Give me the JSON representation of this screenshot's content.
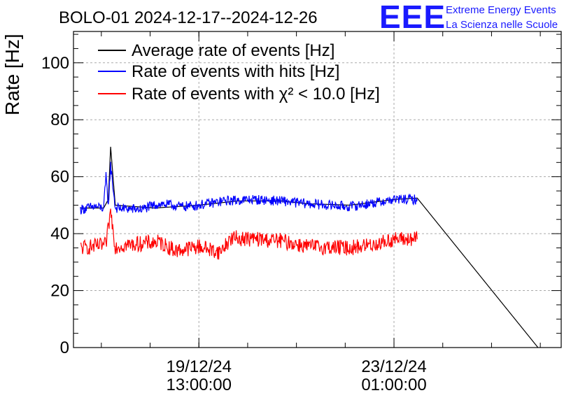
{
  "chart_data": {
    "type": "line",
    "title": "BOLO-01 2024-12-17--2024-12-26",
    "ylabel": "Rate [Hz]",
    "xlabel": "",
    "ylim": [
      0,
      111
    ],
    "yticks": [
      0,
      20,
      40,
      60,
      80,
      100
    ],
    "xlim": [
      "2024-12-17 07:00",
      "2024-12-26 01:00"
    ],
    "xticks": [
      {
        "time": "2024-12-19 13:00",
        "date": "19/12/24",
        "clock": "13:00:00"
      },
      {
        "time": "2024-12-23 01:00",
        "date": "23/12/24",
        "clock": "01:00:00"
      }
    ],
    "grid": true,
    "legend": "top-left",
    "series": [
      {
        "name": "Average rate of events [Hz]",
        "color": "#000000",
        "points": [
          [
            "2024-12-17 10:00",
            49.0
          ],
          [
            "2024-12-17 20:00",
            49.0
          ],
          [
            "2024-12-17 22:00",
            52.0
          ],
          [
            "2024-12-17 23:00",
            70.5
          ],
          [
            "2024-12-18 01:00",
            50.0
          ],
          [
            "2024-12-18 18:00",
            49.0
          ],
          [
            "2024-12-19 13:00",
            50.0
          ],
          [
            "2024-12-20 06:00",
            51.5
          ],
          [
            "2024-12-21 00:00",
            51.5
          ],
          [
            "2024-12-21 12:00",
            50.5
          ],
          [
            "2024-12-22 06:00",
            50.0
          ],
          [
            "2024-12-23 01:00",
            52.0
          ],
          [
            "2024-12-23 11:00",
            52.5
          ],
          [
            "2024-12-25 15:00",
            0.0
          ]
        ]
      },
      {
        "name": "Rate of events with hits [Hz]",
        "color": "#0000ff",
        "points": [
          [
            "2024-12-17 10:00",
            48.5
          ],
          [
            "2024-12-17 16:00",
            49.5
          ],
          [
            "2024-12-17 20:00",
            49.0
          ],
          [
            "2024-12-17 21:00",
            60.0
          ],
          [
            "2024-12-17 22:00",
            50.0
          ],
          [
            "2024-12-17 23:00",
            64.0
          ],
          [
            "2024-12-18 01:00",
            49.0
          ],
          [
            "2024-12-18 12:00",
            48.5
          ],
          [
            "2024-12-18 20:00",
            50.5
          ],
          [
            "2024-12-19 06:00",
            49.5
          ],
          [
            "2024-12-19 13:00",
            50.0
          ],
          [
            "2024-12-20 00:00",
            51.5
          ],
          [
            "2024-12-20 12:00",
            52.0
          ],
          [
            "2024-12-21 00:00",
            51.5
          ],
          [
            "2024-12-21 12:00",
            50.5
          ],
          [
            "2024-12-22 06:00",
            49.5
          ],
          [
            "2024-12-22 18:00",
            51.0
          ],
          [
            "2024-12-23 01:00",
            52.0
          ],
          [
            "2024-12-23 11:00",
            52.0
          ]
        ]
      },
      {
        "name": "Rate of events with χ² < 10.0 [Hz]",
        "color": "#ff0000",
        "points": [
          [
            "2024-12-17 10:00",
            35.0
          ],
          [
            "2024-12-17 16:00",
            35.5
          ],
          [
            "2024-12-17 21:00",
            36.0
          ],
          [
            "2024-12-17 23:00",
            48.0
          ],
          [
            "2024-12-18 01:00",
            35.5
          ],
          [
            "2024-12-18 12:00",
            36.5
          ],
          [
            "2024-12-18 20:00",
            37.0
          ],
          [
            "2024-12-19 03:00",
            34.0
          ],
          [
            "2024-12-19 13:00",
            35.5
          ],
          [
            "2024-12-19 22:00",
            33.5
          ],
          [
            "2024-12-20 03:00",
            38.5
          ],
          [
            "2024-12-20 15:00",
            38.0
          ],
          [
            "2024-12-21 00:00",
            37.5
          ],
          [
            "2024-12-21 12:00",
            35.5
          ],
          [
            "2024-12-22 06:00",
            35.0
          ],
          [
            "2024-12-22 18:00",
            36.5
          ],
          [
            "2024-12-23 01:00",
            38.0
          ],
          [
            "2024-12-23 11:00",
            38.0
          ]
        ]
      }
    ]
  },
  "logo": {
    "mark": "EEE",
    "line1": "Extreme Energy Events",
    "line2": "La Scienza nelle Scuole",
    "color": "#1a1aff"
  }
}
